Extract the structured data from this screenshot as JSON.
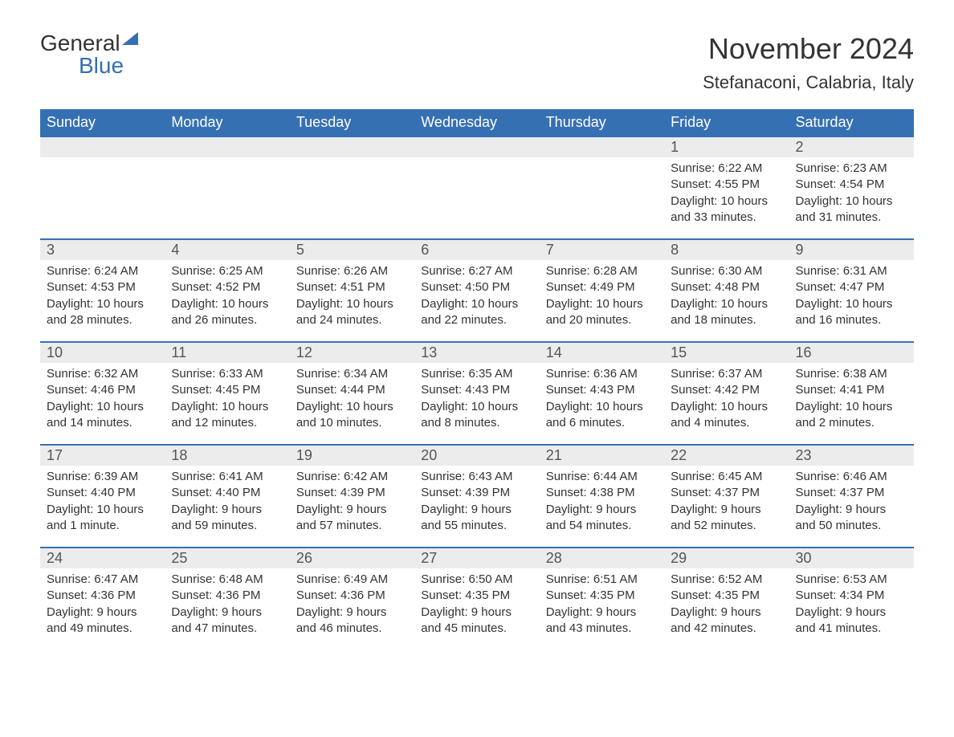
{
  "logo": {
    "general": "General",
    "blue": "Blue"
  },
  "title": "November 2024",
  "location": "Stefanaconi, Calabria, Italy",
  "colors": {
    "header_bg": "#3570b3",
    "header_text": "#ffffff",
    "daynum_bg": "#ececec",
    "text": "#333333",
    "border": "#3570b3"
  },
  "day_headers": [
    "Sunday",
    "Monday",
    "Tuesday",
    "Wednesday",
    "Thursday",
    "Friday",
    "Saturday"
  ],
  "weeks": [
    [
      {
        "num": "",
        "sunrise": "",
        "sunset": "",
        "daylight": ""
      },
      {
        "num": "",
        "sunrise": "",
        "sunset": "",
        "daylight": ""
      },
      {
        "num": "",
        "sunrise": "",
        "sunset": "",
        "daylight": ""
      },
      {
        "num": "",
        "sunrise": "",
        "sunset": "",
        "daylight": ""
      },
      {
        "num": "",
        "sunrise": "",
        "sunset": "",
        "daylight": ""
      },
      {
        "num": "1",
        "sunrise": "Sunrise: 6:22 AM",
        "sunset": "Sunset: 4:55 PM",
        "daylight": "Daylight: 10 hours and 33 minutes."
      },
      {
        "num": "2",
        "sunrise": "Sunrise: 6:23 AM",
        "sunset": "Sunset: 4:54 PM",
        "daylight": "Daylight: 10 hours and 31 minutes."
      }
    ],
    [
      {
        "num": "3",
        "sunrise": "Sunrise: 6:24 AM",
        "sunset": "Sunset: 4:53 PM",
        "daylight": "Daylight: 10 hours and 28 minutes."
      },
      {
        "num": "4",
        "sunrise": "Sunrise: 6:25 AM",
        "sunset": "Sunset: 4:52 PM",
        "daylight": "Daylight: 10 hours and 26 minutes."
      },
      {
        "num": "5",
        "sunrise": "Sunrise: 6:26 AM",
        "sunset": "Sunset: 4:51 PM",
        "daylight": "Daylight: 10 hours and 24 minutes."
      },
      {
        "num": "6",
        "sunrise": "Sunrise: 6:27 AM",
        "sunset": "Sunset: 4:50 PM",
        "daylight": "Daylight: 10 hours and 22 minutes."
      },
      {
        "num": "7",
        "sunrise": "Sunrise: 6:28 AM",
        "sunset": "Sunset: 4:49 PM",
        "daylight": "Daylight: 10 hours and 20 minutes."
      },
      {
        "num": "8",
        "sunrise": "Sunrise: 6:30 AM",
        "sunset": "Sunset: 4:48 PM",
        "daylight": "Daylight: 10 hours and 18 minutes."
      },
      {
        "num": "9",
        "sunrise": "Sunrise: 6:31 AM",
        "sunset": "Sunset: 4:47 PM",
        "daylight": "Daylight: 10 hours and 16 minutes."
      }
    ],
    [
      {
        "num": "10",
        "sunrise": "Sunrise: 6:32 AM",
        "sunset": "Sunset: 4:46 PM",
        "daylight": "Daylight: 10 hours and 14 minutes."
      },
      {
        "num": "11",
        "sunrise": "Sunrise: 6:33 AM",
        "sunset": "Sunset: 4:45 PM",
        "daylight": "Daylight: 10 hours and 12 minutes."
      },
      {
        "num": "12",
        "sunrise": "Sunrise: 6:34 AM",
        "sunset": "Sunset: 4:44 PM",
        "daylight": "Daylight: 10 hours and 10 minutes."
      },
      {
        "num": "13",
        "sunrise": "Sunrise: 6:35 AM",
        "sunset": "Sunset: 4:43 PM",
        "daylight": "Daylight: 10 hours and 8 minutes."
      },
      {
        "num": "14",
        "sunrise": "Sunrise: 6:36 AM",
        "sunset": "Sunset: 4:43 PM",
        "daylight": "Daylight: 10 hours and 6 minutes."
      },
      {
        "num": "15",
        "sunrise": "Sunrise: 6:37 AM",
        "sunset": "Sunset: 4:42 PM",
        "daylight": "Daylight: 10 hours and 4 minutes."
      },
      {
        "num": "16",
        "sunrise": "Sunrise: 6:38 AM",
        "sunset": "Sunset: 4:41 PM",
        "daylight": "Daylight: 10 hours and 2 minutes."
      }
    ],
    [
      {
        "num": "17",
        "sunrise": "Sunrise: 6:39 AM",
        "sunset": "Sunset: 4:40 PM",
        "daylight": "Daylight: 10 hours and 1 minute."
      },
      {
        "num": "18",
        "sunrise": "Sunrise: 6:41 AM",
        "sunset": "Sunset: 4:40 PM",
        "daylight": "Daylight: 9 hours and 59 minutes."
      },
      {
        "num": "19",
        "sunrise": "Sunrise: 6:42 AM",
        "sunset": "Sunset: 4:39 PM",
        "daylight": "Daylight: 9 hours and 57 minutes."
      },
      {
        "num": "20",
        "sunrise": "Sunrise: 6:43 AM",
        "sunset": "Sunset: 4:39 PM",
        "daylight": "Daylight: 9 hours and 55 minutes."
      },
      {
        "num": "21",
        "sunrise": "Sunrise: 6:44 AM",
        "sunset": "Sunset: 4:38 PM",
        "daylight": "Daylight: 9 hours and 54 minutes."
      },
      {
        "num": "22",
        "sunrise": "Sunrise: 6:45 AM",
        "sunset": "Sunset: 4:37 PM",
        "daylight": "Daylight: 9 hours and 52 minutes."
      },
      {
        "num": "23",
        "sunrise": "Sunrise: 6:46 AM",
        "sunset": "Sunset: 4:37 PM",
        "daylight": "Daylight: 9 hours and 50 minutes."
      }
    ],
    [
      {
        "num": "24",
        "sunrise": "Sunrise: 6:47 AM",
        "sunset": "Sunset: 4:36 PM",
        "daylight": "Daylight: 9 hours and 49 minutes."
      },
      {
        "num": "25",
        "sunrise": "Sunrise: 6:48 AM",
        "sunset": "Sunset: 4:36 PM",
        "daylight": "Daylight: 9 hours and 47 minutes."
      },
      {
        "num": "26",
        "sunrise": "Sunrise: 6:49 AM",
        "sunset": "Sunset: 4:36 PM",
        "daylight": "Daylight: 9 hours and 46 minutes."
      },
      {
        "num": "27",
        "sunrise": "Sunrise: 6:50 AM",
        "sunset": "Sunset: 4:35 PM",
        "daylight": "Daylight: 9 hours and 45 minutes."
      },
      {
        "num": "28",
        "sunrise": "Sunrise: 6:51 AM",
        "sunset": "Sunset: 4:35 PM",
        "daylight": "Daylight: 9 hours and 43 minutes."
      },
      {
        "num": "29",
        "sunrise": "Sunrise: 6:52 AM",
        "sunset": "Sunset: 4:35 PM",
        "daylight": "Daylight: 9 hours and 42 minutes."
      },
      {
        "num": "30",
        "sunrise": "Sunrise: 6:53 AM",
        "sunset": "Sunset: 4:34 PM",
        "daylight": "Daylight: 9 hours and 41 minutes."
      }
    ]
  ]
}
